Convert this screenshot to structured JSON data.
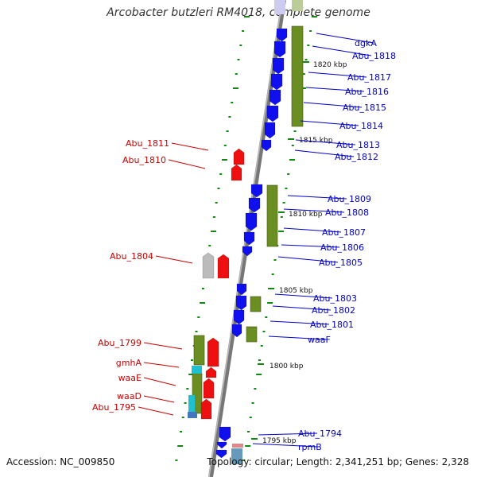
{
  "title": "Arcobacter butzleri RM4018, complete genome",
  "footer": {
    "accession": "Accession: NC_009850",
    "summary": "Topology: circular; Length: 2,341,251 bp; Genes: 2,328"
  },
  "colors": {
    "forward_gene": "#1010ee",
    "reverse_gene": "#ee1010",
    "cds_box": "#6b8e23",
    "rna": "#20c0d0",
    "backbone": "#777777",
    "tick": "#118811",
    "label_forward": "#0000cc",
    "label_reverse": "#cc0000"
  },
  "kbp_markers": [
    "1820 kbp",
    "1815 kbp",
    "1810 kbp",
    "1805 kbp",
    "1800 kbp",
    "1795 kbp"
  ],
  "right_labels": [
    "dgkA",
    "Abu_1818",
    "Abu_1817",
    "Abu_1816",
    "Abu_1815",
    "Abu_1814",
    "Abu_1813",
    "Abu_1812",
    "Abu_1809",
    "Abu_1808",
    "Abu_1807",
    "Abu_1806",
    "Abu_1805",
    "Abu_1803",
    "Abu_1802",
    "Abu_1801",
    "waaF",
    "Abu_1794",
    "rpmB"
  ],
  "left_labels": [
    "Abu_1811",
    "Abu_1810",
    "Abu_1804",
    "Abu_1799",
    "gmhA",
    "waaE",
    "waaD",
    "Abu_1795"
  ]
}
